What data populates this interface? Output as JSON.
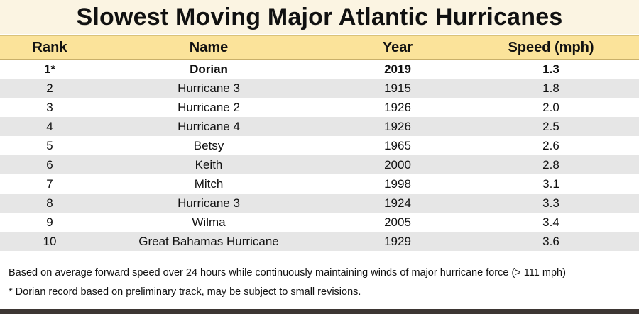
{
  "title": "Slowest Moving Major Atlantic Hurricanes",
  "columns": {
    "rank": "Rank",
    "name": "Name",
    "year": "Year",
    "speed": "Speed (mph)"
  },
  "rows": [
    {
      "rank": "1*",
      "name": "Dorian",
      "year": "2019",
      "speed": "1.3"
    },
    {
      "rank": "2",
      "name": "Hurricane 3",
      "year": "1915",
      "speed": "1.8"
    },
    {
      "rank": "3",
      "name": "Hurricane 2",
      "year": "1926",
      "speed": "2.0"
    },
    {
      "rank": "4",
      "name": "Hurricane 4",
      "year": "1926",
      "speed": "2.5"
    },
    {
      "rank": "5",
      "name": "Betsy",
      "year": "1965",
      "speed": "2.6"
    },
    {
      "rank": "6",
      "name": "Keith",
      "year": "2000",
      "speed": "2.8"
    },
    {
      "rank": "7",
      "name": "Mitch",
      "year": "1998",
      "speed": "3.1"
    },
    {
      "rank": "8",
      "name": "Hurricane 3",
      "year": "1924",
      "speed": "3.3"
    },
    {
      "rank": "9",
      "name": "Wilma",
      "year": "2005",
      "speed": "3.4"
    },
    {
      "rank": "10",
      "name": "Great Bahamas Hurricane",
      "year": "1929",
      "speed": "3.6"
    }
  ],
  "notes": {
    "basis": "Based on average forward speed over 24 hours  while continuously maintaining winds of major hurricane force (> 111 mph)",
    "dorian": "* Dorian record based on preliminary track, may be subject to small revisions."
  },
  "colors": {
    "title_background": "#fbf4e2",
    "header_background": "#fbe39a",
    "shaded_row": "#e6e6e6",
    "bottom_strip": "#3d3633"
  }
}
